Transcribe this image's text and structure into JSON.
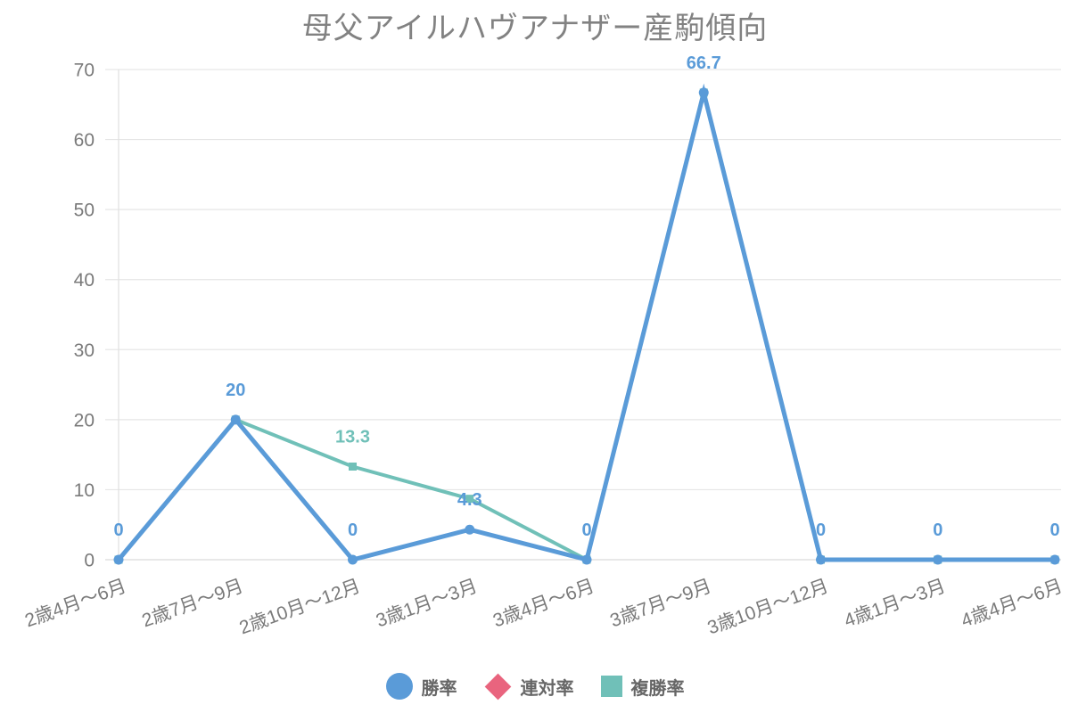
{
  "title": {
    "text": "母父アイルハヴアナザー産駒傾向",
    "color": "#828282"
  },
  "legend": {
    "items": [
      {
        "label": "勝率",
        "marker": "circle",
        "color": "#5a9bd8"
      },
      {
        "label": "連対率",
        "marker": "diamond",
        "color": "#e9647e"
      },
      {
        "label": "複勝率",
        "marker": "square",
        "color": "#70c0b8"
      }
    ]
  },
  "chart_data": {
    "type": "line",
    "title": "母父アイルハヴアナザー産駒傾向",
    "categories": [
      "2歳4月〜6月",
      "2歳7月〜9月",
      "2歳10月〜12月",
      "3歳1月〜3月",
      "3歳4月〜6月",
      "3歳7月〜9月",
      "3歳10月〜12月",
      "4歳1月〜3月",
      "4歳4月〜6月"
    ],
    "yticks": [
      "0",
      "10",
      "20",
      "30",
      "40",
      "50",
      "60",
      "70"
    ],
    "ylim": [
      0,
      70
    ],
    "grid": "horizontal-only",
    "legend_position": "bottom",
    "series": [
      {
        "name": "勝率",
        "color": "#5a9bd8",
        "marker": "circle",
        "marker_size": 5.5,
        "line_width": 5,
        "values": [
          0,
          20,
          0,
          4.3,
          0,
          66.7,
          0,
          0,
          0
        ],
        "labels": [
          "0",
          "20",
          "0",
          "4.3",
          "0",
          "66.7",
          "0",
          "0",
          "0"
        ]
      },
      {
        "name": "連対率",
        "color": "#e9647e",
        "marker": "diamond",
        "marker_size": 5,
        "line_width": 4,
        "values": [
          0,
          20,
          0,
          4.3,
          0,
          66.7,
          0,
          0,
          0
        ],
        "labels": [
          "",
          "",
          "",
          "",
          "",
          "",
          "",
          "",
          ""
        ],
        "note": "line and labels hidden behind 勝率 series (identical values)"
      },
      {
        "name": "複勝率",
        "color": "#70c0b8",
        "marker": "square",
        "marker_size": 4.5,
        "line_width": 4,
        "values": [
          0,
          20,
          13.3,
          8.7,
          0,
          66.7,
          0,
          0,
          0
        ],
        "labels": [
          "",
          "",
          "13.3",
          "",
          "",
          "",
          "",
          "",
          ""
        ],
        "note": "visible only between 2歳7月〜9月 and 3歳4月〜6月; elsewhere hidden behind 勝率 series"
      }
    ]
  }
}
